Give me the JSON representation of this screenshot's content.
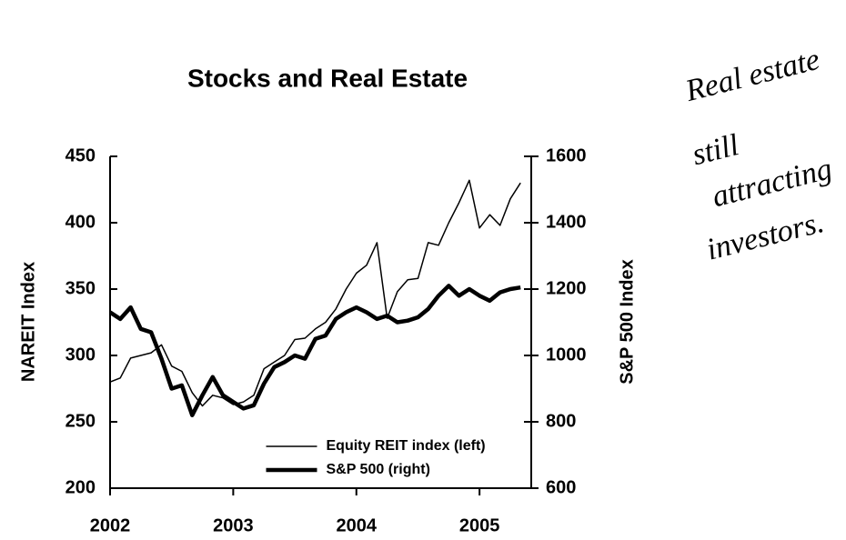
{
  "chart_data": {
    "type": "line",
    "title": "Stocks and Real Estate",
    "y_label": "NAREIT Index",
    "y2_label": "S&P 500 Index",
    "x": [
      2002,
      2002.083,
      2002.167,
      2002.25,
      2002.333,
      2002.417,
      2002.5,
      2002.583,
      2002.667,
      2002.75,
      2002.833,
      2002.917,
      2003,
      2003.083,
      2003.167,
      2003.25,
      2003.333,
      2003.417,
      2003.5,
      2003.583,
      2003.667,
      2003.75,
      2003.833,
      2003.917,
      2004,
      2004.083,
      2004.167,
      2004.25,
      2004.333,
      2004.417,
      2004.5,
      2004.583,
      2004.667,
      2004.75,
      2004.833,
      2004.917,
      2005,
      2005.083,
      2005.167,
      2005.25,
      2005.333
    ],
    "series": [
      {
        "name": "Equity REIT index (left)",
        "color": "#000000",
        "width": 1.5,
        "axis": "y",
        "values": [
          280,
          283,
          298,
          300,
          302,
          308,
          292,
          288,
          272,
          262,
          270,
          268,
          263,
          265,
          270,
          290,
          295,
          300,
          312,
          313,
          320,
          325,
          335,
          350,
          362,
          368,
          385,
          328,
          348,
          357,
          358,
          385,
          383,
          400,
          415,
          432,
          396,
          406,
          398,
          418,
          430
        ]
      },
      {
        "name": "S&P 500 (right)",
        "color": "#000000",
        "width": 4.5,
        "axis": "y2",
        "values": [
          1130,
          1110,
          1145,
          1080,
          1070,
          990,
          900,
          910,
          820,
          880,
          935,
          880,
          860,
          840,
          850,
          915,
          965,
          980,
          1000,
          990,
          1050,
          1060,
          1110,
          1130,
          1145,
          1130,
          1110,
          1120,
          1100,
          1105,
          1115,
          1140,
          1180,
          1210,
          1180,
          1200,
          1180,
          1165,
          1190,
          1200,
          1205
        ]
      }
    ],
    "xlim": [
      2002,
      2005.42
    ],
    "xticks": [
      2002,
      2003,
      2004,
      2005
    ],
    "ylim": [
      200,
      450
    ],
    "yticks": [
      200,
      250,
      300,
      350,
      400,
      450
    ],
    "y2lim": [
      600,
      1600
    ],
    "y2ticks": [
      600,
      800,
      1000,
      1200,
      1400,
      1600
    ],
    "legend": "lower center",
    "annotation": [
      "Real estate",
      "still",
      "attracting",
      "investors."
    ]
  }
}
